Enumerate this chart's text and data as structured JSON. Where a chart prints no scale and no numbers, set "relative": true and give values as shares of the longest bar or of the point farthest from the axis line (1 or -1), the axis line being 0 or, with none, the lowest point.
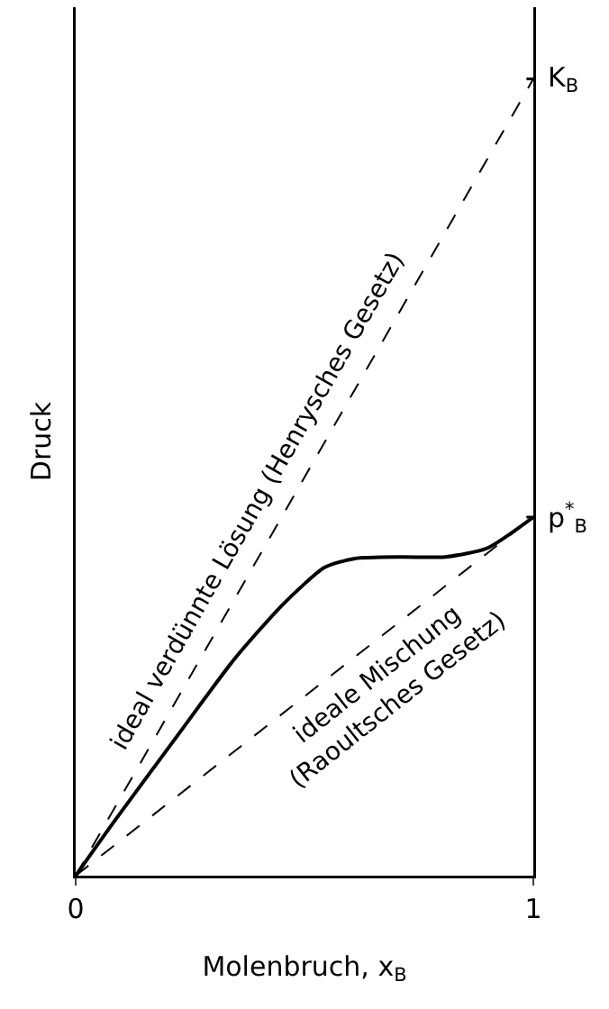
{
  "chart_data": {
    "type": "line",
    "relative": true,
    "xlabel": "Molenbruch, x$_{B}$",
    "ylabel": "Druck",
    "xlim": [
      0,
      1
    ],
    "xticks": [
      0,
      1
    ],
    "grid": false,
    "marker": "none",
    "series": [
      {
        "color": "#000000",
        "line_style": "solid",
        "x": [
          0,
          0.084,
          0.215,
          0.347,
          0.452,
          0.544,
          0.61,
          0.715,
          0.807,
          0.899,
          1
        ],
        "values": [
          0,
          0.068,
          0.17,
          0.272,
          0.34,
          0.387,
          0.398,
          0.4,
          0.4,
          0.411,
          0.45
        ]
      },
      {
        "color": "#000000",
        "line_style": "dashed",
        "x": [
          0,
          1
        ],
        "values": [
          0,
          1
        ]
      },
      {
        "color": "#000000",
        "line_style": "dashed",
        "x": [
          0,
          1
        ],
        "values": [
          0,
          0.45
        ]
      }
    ],
    "annotations": [
      "ideal verdünnte Lösung (Henrysches Gesetz)",
      "ideale Mischung\n(Raoultsches Gesetz)",
      {
        "text": "K$_{B}$",
        "x": 1,
        "y": 1
      },
      {
        "text": "p$^{*}$$_{B}$",
        "x": 1,
        "y": 0.45
      }
    ]
  }
}
